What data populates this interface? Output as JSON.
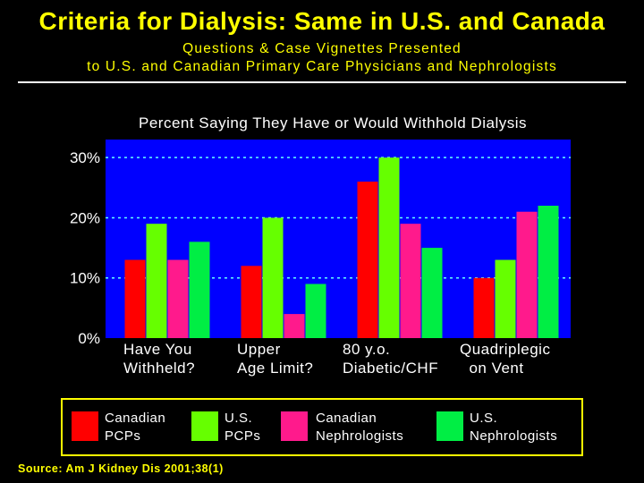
{
  "header": {
    "title": "Criteria for Dialysis: Same in U.S. and Canada",
    "subtitle_line1": "Questions & Case Vignettes Presented",
    "subtitle_line2": "to U.S. and Canadian Primary Care Physicians and Nephrologists"
  },
  "chart_data": {
    "type": "bar",
    "title": "Percent Saying They Have or Would Withhold Dialysis",
    "categories": [
      "Have You\nWithheld?",
      "Upper\nAge Limit?",
      "80 y.o.\nDiabetic/CHF",
      "Quadriplegic\n  on Vent"
    ],
    "series": [
      {
        "name": "Canadian PCPs",
        "color": "#ff0000",
        "values": [
          13,
          12,
          26,
          10
        ]
      },
      {
        "name": "U.S. PCPs",
        "color": "#66ff00",
        "values": [
          19,
          20,
          30,
          13
        ]
      },
      {
        "name": "Canadian Nephrologists",
        "color": "#ff1a8c",
        "values": [
          13,
          4,
          19,
          21
        ]
      },
      {
        "name": "U.S. Nephrologists",
        "color": "#00ee44",
        "values": [
          16,
          9,
          15,
          22
        ]
      }
    ],
    "yticks": [
      "0%",
      "10%",
      "20%",
      "30%"
    ],
    "ylim": [
      0,
      33
    ],
    "plot_background": "#0000ff",
    "grid": true
  },
  "legend": [
    {
      "line1": "Canadian",
      "line2": "PCPs"
    },
    {
      "line1": "U.S.",
      "line2": "PCPs"
    },
    {
      "line1": "Canadian",
      "line2": "Nephrologists"
    },
    {
      "line1": "U.S.",
      "line2": "Nephrologists"
    }
  ],
  "source": "Source: Am J Kidney Dis 2001;38(1)"
}
